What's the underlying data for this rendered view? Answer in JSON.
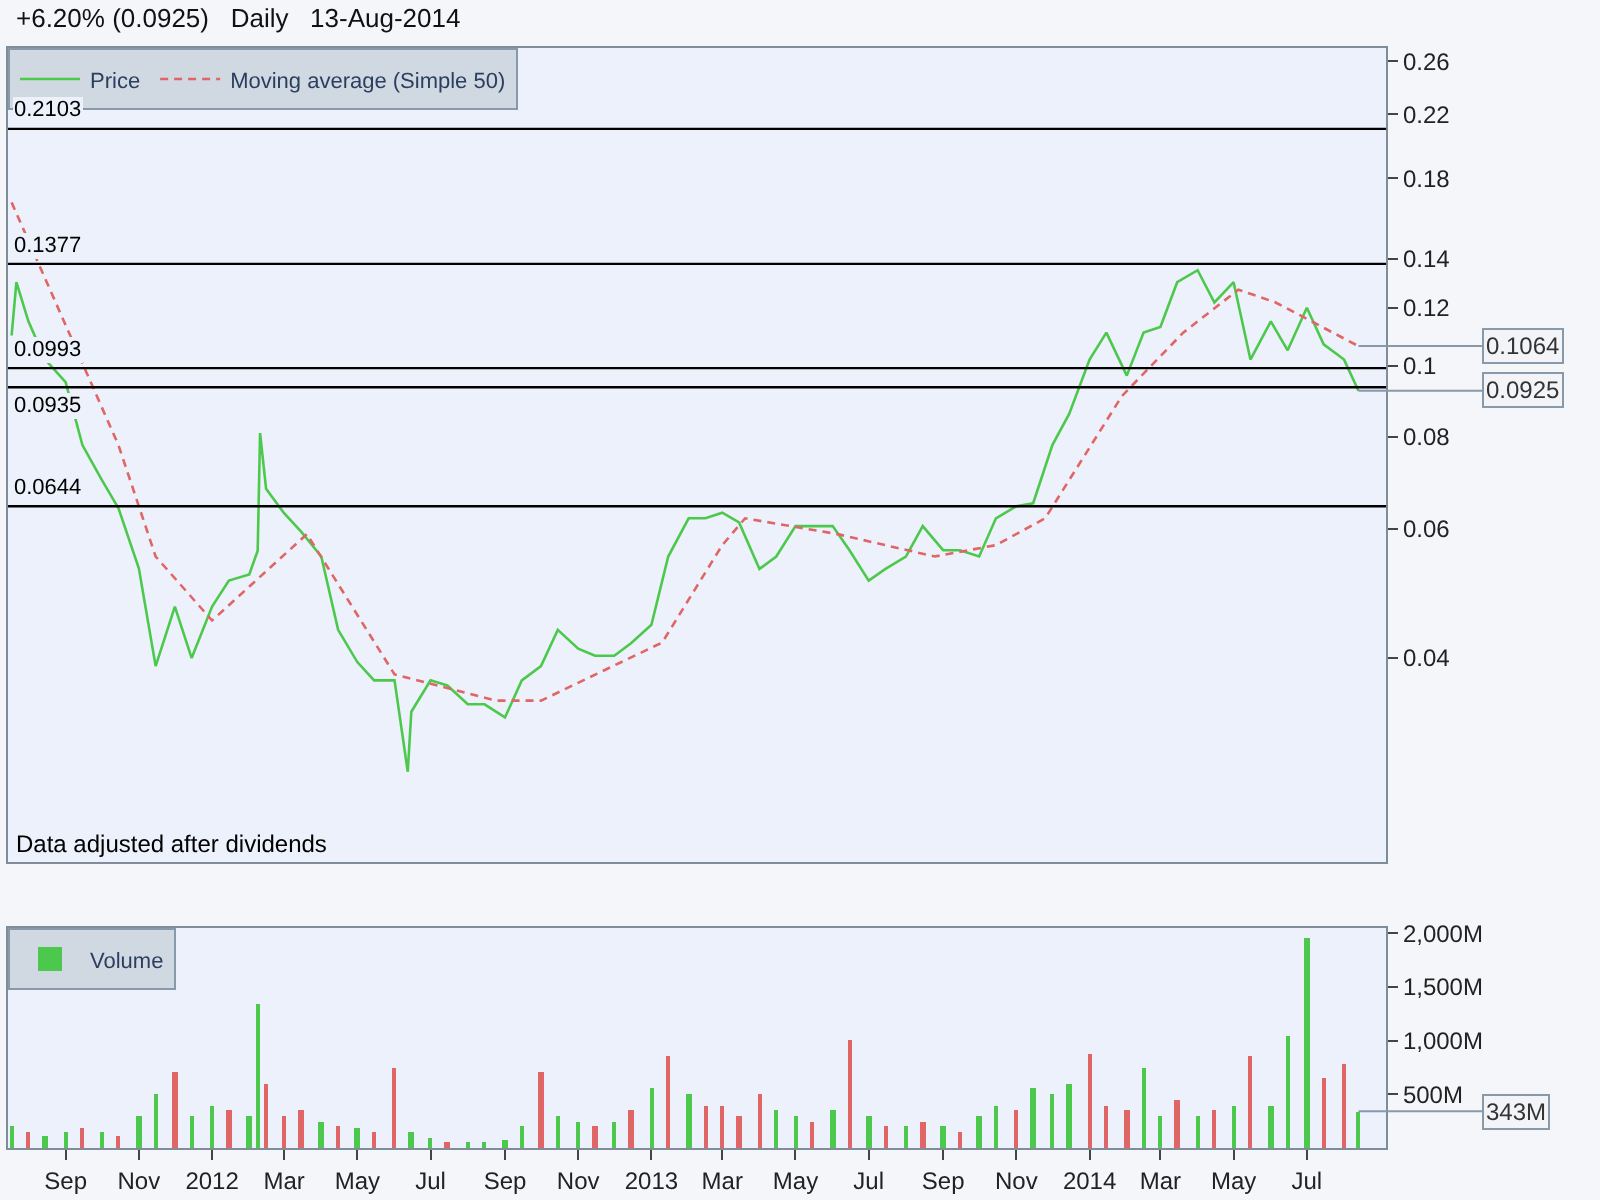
{
  "chart_data": [
    {
      "type": "line",
      "title": "+6.20% (0.0925)   Daily   13-Aug-2014",
      "log": "y",
      "legend": "top left",
      "tick_labels": "y",
      "grid": false,
      "xlim": [
        "2011-07-15",
        "2014-09-05"
      ],
      "ylim": [
        0.0211,
        0.271
      ],
      "yticks": [
        0.04,
        0.06,
        0.08,
        0.1,
        0.12,
        0.14,
        0.18,
        0.22,
        0.26
      ],
      "series": [
        {
          "name": "Price",
          "color": "#4cc94c",
          "type": "line",
          "line_style": "solid",
          "x": [
            "2011-07-18",
            "2011-07-22",
            "2011-08-01",
            "2011-08-15",
            "2011-09-01",
            "2011-09-15",
            "2011-10-01",
            "2011-10-15",
            "2011-11-01",
            "2011-11-15",
            "2011-12-01",
            "2011-12-15",
            "2012-01-01",
            "2012-01-15",
            "2012-02-01",
            "2012-02-08",
            "2012-02-10",
            "2012-02-15",
            "2012-03-01",
            "2012-03-15",
            "2012-04-01",
            "2012-04-15",
            "2012-05-01",
            "2012-05-15",
            "2012-06-01",
            "2012-06-12",
            "2012-06-15",
            "2012-07-01",
            "2012-07-15",
            "2012-08-01",
            "2012-08-15",
            "2012-09-01",
            "2012-09-15",
            "2012-10-01",
            "2012-10-15",
            "2012-11-01",
            "2012-11-15",
            "2012-12-01",
            "2012-12-15",
            "2013-01-01",
            "2013-01-15",
            "2013-02-01",
            "2013-02-15",
            "2013-03-01",
            "2013-03-15",
            "2013-04-01",
            "2013-04-15",
            "2013-05-01",
            "2013-05-15",
            "2013-06-01",
            "2013-06-15",
            "2013-07-01",
            "2013-07-15",
            "2013-08-01",
            "2013-08-15",
            "2013-09-01",
            "2013-09-15",
            "2013-10-01",
            "2013-10-15",
            "2013-11-01",
            "2013-11-15",
            "2013-12-01",
            "2013-12-15",
            "2014-01-01",
            "2014-01-15",
            "2014-02-01",
            "2014-02-15",
            "2014-03-01",
            "2014-03-15",
            "2014-04-01",
            "2014-04-15",
            "2014-05-01",
            "2014-05-15",
            "2014-06-01",
            "2014-06-15",
            "2014-07-01",
            "2014-07-15",
            "2014-08-01",
            "2014-08-13"
          ],
          "values": [
            0.11,
            0.13,
            0.115,
            0.102,
            0.095,
            0.078,
            0.07,
            0.064,
            0.053,
            0.039,
            0.047,
            0.04,
            0.047,
            0.051,
            0.052,
            0.056,
            0.081,
            0.068,
            0.063,
            0.0595,
            0.055,
            0.0437,
            0.0395,
            0.0373,
            0.0373,
            0.028,
            0.0338,
            0.0373,
            0.0367,
            0.0346,
            0.0346,
            0.0332,
            0.0373,
            0.039,
            0.0437,
            0.0412,
            0.0403,
            0.0403,
            0.0419,
            0.0444,
            0.055,
            0.062,
            0.062,
            0.0631,
            0.0612,
            0.0529,
            0.055,
            0.0605,
            0.0605,
            0.0605,
            0.0561,
            0.051,
            0.0529,
            0.055,
            0.0605,
            0.0561,
            0.0561,
            0.055,
            0.062,
            0.0644,
            0.065,
            0.078,
            0.086,
            0.102,
            0.111,
            0.097,
            0.111,
            0.113,
            0.13,
            0.135,
            0.122,
            0.13,
            0.102,
            0.115,
            0.105,
            0.12,
            0.107,
            0.102,
            0.0925
          ]
        },
        {
          "name": "Moving average (Simple 50)",
          "color": "#e06666",
          "type": "line",
          "line_style": "dashed",
          "x": [
            "2011-07-18",
            "2011-10-15",
            "2011-11-15",
            "2012-01-01",
            "2012-03-20",
            "2012-06-01",
            "2012-08-25",
            "2012-10-01",
            "2013-01-10",
            "2013-03-01",
            "2013-03-20",
            "2013-06-05",
            "2013-08-25",
            "2013-10-15",
            "2013-11-25",
            "2014-01-28",
            "2014-03-20",
            "2014-05-05",
            "2014-06-05",
            "2014-08-13"
          ],
          "values": [
            0.167,
            0.078,
            0.055,
            0.045,
            0.059,
            0.038,
            0.035,
            0.035,
            0.042,
            0.057,
            0.062,
            0.059,
            0.055,
            0.057,
            0.062,
            0.091,
            0.111,
            0.127,
            0.122,
            0.1064
          ]
        }
      ],
      "ref_lines": [
        {
          "axis": "y",
          "value": 0.2103,
          "label": "0.2103"
        },
        {
          "axis": "y",
          "value": 0.1377,
          "label": "0.1377"
        },
        {
          "axis": "y",
          "value": 0.0993,
          "label": "0.0993"
        },
        {
          "axis": "y",
          "value": 0.0935,
          "label": "0.0935"
        },
        {
          "axis": "y",
          "value": 0.0644,
          "label": "0.0644"
        }
      ],
      "annotations": [
        "Data adjusted after dividends",
        {
          "text": "0.1064",
          "x": "2014-08-13",
          "y": 0.1064
        },
        {
          "text": "0.0925",
          "x": "2014-08-13",
          "y": 0.0925
        }
      ]
    },
    {
      "type": "bar",
      "legend": "top left",
      "grid": false,
      "xlim": [
        "2011-07-15",
        "2014-09-05"
      ],
      "ylim": [
        0,
        2050
      ],
      "xticks": [
        {
          "value": "2011-09-01",
          "label": "Sep"
        },
        {
          "value": "2011-11-01",
          "label": "Nov"
        },
        {
          "value": "2012-01-01",
          "label": "2012"
        },
        {
          "value": "2012-03-01",
          "label": "Mar"
        },
        {
          "value": "2012-05-01",
          "label": "May"
        },
        {
          "value": "2012-07-01",
          "label": "Jul"
        },
        {
          "value": "2012-09-01",
          "label": "Sep"
        },
        {
          "value": "2012-11-01",
          "label": "Nov"
        },
        {
          "value": "2013-01-01",
          "label": "2013"
        },
        {
          "value": "2013-03-01",
          "label": "Mar"
        },
        {
          "value": "2013-05-01",
          "label": "May"
        },
        {
          "value": "2013-07-01",
          "label": "Jul"
        },
        {
          "value": "2013-09-01",
          "label": "Sep"
        },
        {
          "value": "2013-11-01",
          "label": "Nov"
        },
        {
          "value": "2014-01-01",
          "label": "2014"
        },
        {
          "value": "2014-03-01",
          "label": "Mar"
        },
        {
          "value": "2014-05-01",
          "label": "May"
        },
        {
          "value": "2014-07-01",
          "label": "Jul"
        }
      ],
      "yticks": [
        {
          "value": 500,
          "label": "500M"
        },
        {
          "value": 1000,
          "label": "1,000M"
        },
        {
          "value": 1500,
          "label": "1,500M"
        },
        {
          "value": 2000,
          "label": "2,000M"
        }
      ],
      "series": [
        {
          "name": "Volume",
          "x": [
            "2011-07-18",
            "2011-08-01",
            "2011-08-15",
            "2011-09-01",
            "2011-09-15",
            "2011-10-01",
            "2011-10-15",
            "2011-11-01",
            "2011-11-15",
            "2011-12-01",
            "2011-12-15",
            "2012-01-01",
            "2012-01-15",
            "2012-02-01",
            "2012-02-08",
            "2012-02-15",
            "2012-03-01",
            "2012-03-15",
            "2012-04-01",
            "2012-04-15",
            "2012-05-01",
            "2012-05-15",
            "2012-06-01",
            "2012-06-15",
            "2012-07-01",
            "2012-07-15",
            "2012-08-01",
            "2012-08-15",
            "2012-09-01",
            "2012-09-15",
            "2012-10-01",
            "2012-10-15",
            "2012-11-01",
            "2012-11-15",
            "2012-12-01",
            "2012-12-15",
            "2013-01-01",
            "2013-01-15",
            "2013-02-01",
            "2013-02-15",
            "2013-03-01",
            "2013-03-15",
            "2013-04-01",
            "2013-04-15",
            "2013-05-01",
            "2013-05-15",
            "2013-06-01",
            "2013-06-15",
            "2013-07-01",
            "2013-07-15",
            "2013-08-01",
            "2013-08-15",
            "2013-09-01",
            "2013-09-15",
            "2013-10-01",
            "2013-10-15",
            "2013-11-01",
            "2013-11-15",
            "2013-12-01",
            "2013-12-15",
            "2014-01-01",
            "2014-01-15",
            "2014-02-01",
            "2014-02-15",
            "2014-03-01",
            "2014-03-15",
            "2014-04-01",
            "2014-04-15",
            "2014-05-01",
            "2014-05-15",
            "2014-06-01",
            "2014-06-15",
            "2014-07-01",
            "2014-07-15",
            "2014-08-01",
            "2014-08-13"
          ],
          "values": [
            200,
            150,
            120,
            150,
            180,
            150,
            120,
            300,
            500,
            700,
            300,
            400,
            350,
            300,
            1350,
            600,
            300,
            350,
            250,
            200,
            180,
            150,
            750,
            150,
            100,
            60,
            60,
            50,
            80,
            200,
            700,
            300,
            250,
            200,
            250,
            350,
            550,
            850,
            500,
            400,
            400,
            300,
            500,
            350,
            300,
            250,
            350,
            1000,
            300,
            200,
            200,
            250,
            200,
            150,
            300,
            400,
            350,
            550,
            500,
            600,
            870,
            400,
            350,
            750,
            300,
            450,
            300,
            350,
            400,
            850,
            400,
            1050,
            1950,
            650,
            780,
            343
          ],
          "colors": [
            "#4cc94c",
            "#e06666",
            "#4cc94c",
            "#4cc94c",
            "#e06666",
            "#4cc94c",
            "#e06666",
            "#4cc94c",
            "#4cc94c",
            "#e06666",
            "#4cc94c",
            "#4cc94c",
            "#e06666",
            "#4cc94c",
            "#4cc94c",
            "#e06666",
            "#e06666",
            "#e06666",
            "#4cc94c",
            "#e06666",
            "#4cc94c",
            "#e06666",
            "#e06666",
            "#4cc94c",
            "#4cc94c",
            "#e06666",
            "#4cc94c",
            "#4cc94c",
            "#4cc94c",
            "#4cc94c",
            "#e06666",
            "#4cc94c",
            "#4cc94c",
            "#e06666",
            "#4cc94c",
            "#e06666",
            "#4cc94c",
            "#e06666",
            "#4cc94c",
            "#e06666",
            "#e06666",
            "#e06666",
            "#e06666",
            "#4cc94c",
            "#4cc94c",
            "#e06666",
            "#4cc94c",
            "#e06666",
            "#4cc94c",
            "#e06666",
            "#4cc94c",
            "#e06666",
            "#4cc94c",
            "#e06666",
            "#4cc94c",
            "#4cc94c",
            "#e06666",
            "#4cc94c",
            "#4cc94c",
            "#4cc94c",
            "#e06666",
            "#e06666",
            "#e06666",
            "#4cc94c",
            "#4cc94c",
            "#e06666",
            "#4cc94c",
            "#e06666",
            "#4cc94c",
            "#e06666",
            "#4cc94c",
            "#4cc94c",
            "#4cc94c",
            "#e06666",
            "#e06666",
            "#4cc94c"
          ]
        }
      ],
      "annotations": [
        {
          "text": "343M",
          "x": "2014-08-13",
          "y": 343
        }
      ]
    }
  ]
}
